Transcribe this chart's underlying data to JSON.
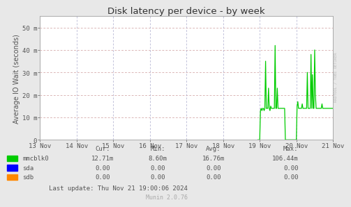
{
  "title": "Disk latency per device - by week",
  "ylabel": "Average IO Wait (seconds)",
  "background_color": "#e8e8e8",
  "plot_bg_color": "#ffffff",
  "x_tick_labels": [
    "13 Nov",
    "14 Nov",
    "15 Nov",
    "16 Nov",
    "17 Nov",
    "18 Nov",
    "19 Nov",
    "20 Nov",
    "21 Nov"
  ],
  "x_tick_positions": [
    0,
    1,
    2,
    3,
    4,
    5,
    6,
    7,
    8
  ],
  "ylim": [
    0,
    55
  ],
  "ytick_positions": [
    0,
    10,
    20,
    30,
    40,
    50
  ],
  "ytick_labels": [
    "0",
    "10 m",
    "20 m",
    "30 m",
    "40 m",
    "50 m"
  ],
  "legend_entries": [
    {
      "label": "mmcblk0",
      "color": "#00cc00"
    },
    {
      "label": "sda",
      "color": "#0000ff"
    },
    {
      "label": "sdb",
      "color": "#ff8800"
    }
  ],
  "stats": [
    {
      "name": "mmcblk0",
      "cur": "12.71m",
      "min": "8.60m",
      "avg": "16.76m",
      "max": "106.44m"
    },
    {
      "name": "sda",
      "cur": "0.00",
      "min": "0.00",
      "avg": "0.00",
      "max": "0.00"
    },
    {
      "name": "sdb",
      "cur": "0.00",
      "min": "0.00",
      "avg": "0.00",
      "max": "0.00"
    }
  ],
  "footer_update": "Last update: Thu Nov 21 19:00:06 2024",
  "footer_munin": "Munin 2.0.76",
  "watermark": "RRDTOOL / TOBI OETIKER",
  "line_color": "#00cc00",
  "spike_data": {
    "x": [
      5.95,
      6.0,
      6.02,
      6.04,
      6.06,
      6.08,
      6.1,
      6.12,
      6.14,
      6.16,
      6.18,
      6.2,
      6.22,
      6.24,
      6.26,
      6.28,
      6.3,
      6.32,
      6.34,
      6.36,
      6.38,
      6.4,
      6.42,
      6.44,
      6.46,
      6.48,
      6.5,
      6.52,
      6.54,
      6.56,
      6.58,
      6.6,
      6.62,
      6.64,
      6.66,
      6.68,
      6.7,
      6.75,
      6.8,
      7.0,
      7.02,
      7.04,
      7.06,
      7.08,
      7.1,
      7.12,
      7.14,
      7.16,
      7.18,
      7.2,
      7.22,
      7.24,
      7.26,
      7.28,
      7.3,
      7.32,
      7.34,
      7.36,
      7.38,
      7.4,
      7.42,
      7.44,
      7.46,
      7.48,
      7.5,
      7.52,
      7.54,
      7.56,
      7.58,
      7.6,
      7.62,
      7.64,
      7.66,
      7.68,
      7.7,
      7.72,
      7.74,
      7.76,
      7.78,
      7.8,
      7.82,
      7.84,
      7.86,
      7.88,
      7.9,
      7.95,
      8.0
    ],
    "y": [
      0,
      0,
      13,
      14,
      13,
      14,
      14,
      13,
      14,
      35,
      14,
      14,
      14,
      23,
      14,
      13,
      15,
      14,
      14,
      14,
      14,
      14,
      42,
      14,
      14,
      23,
      14,
      14,
      14,
      14,
      14,
      14,
      14,
      14,
      14,
      14,
      0,
      0,
      0,
      0,
      15,
      17,
      14,
      14,
      14,
      14,
      14,
      16,
      14,
      14,
      14,
      14,
      14,
      14,
      30,
      14,
      14,
      14,
      14,
      38,
      14,
      29,
      14,
      14,
      40,
      20,
      14,
      14,
      14,
      14,
      14,
      14,
      14,
      14,
      16,
      14,
      14,
      14,
      14,
      14,
      14,
      14,
      14,
      14,
      14,
      14,
      14
    ]
  }
}
